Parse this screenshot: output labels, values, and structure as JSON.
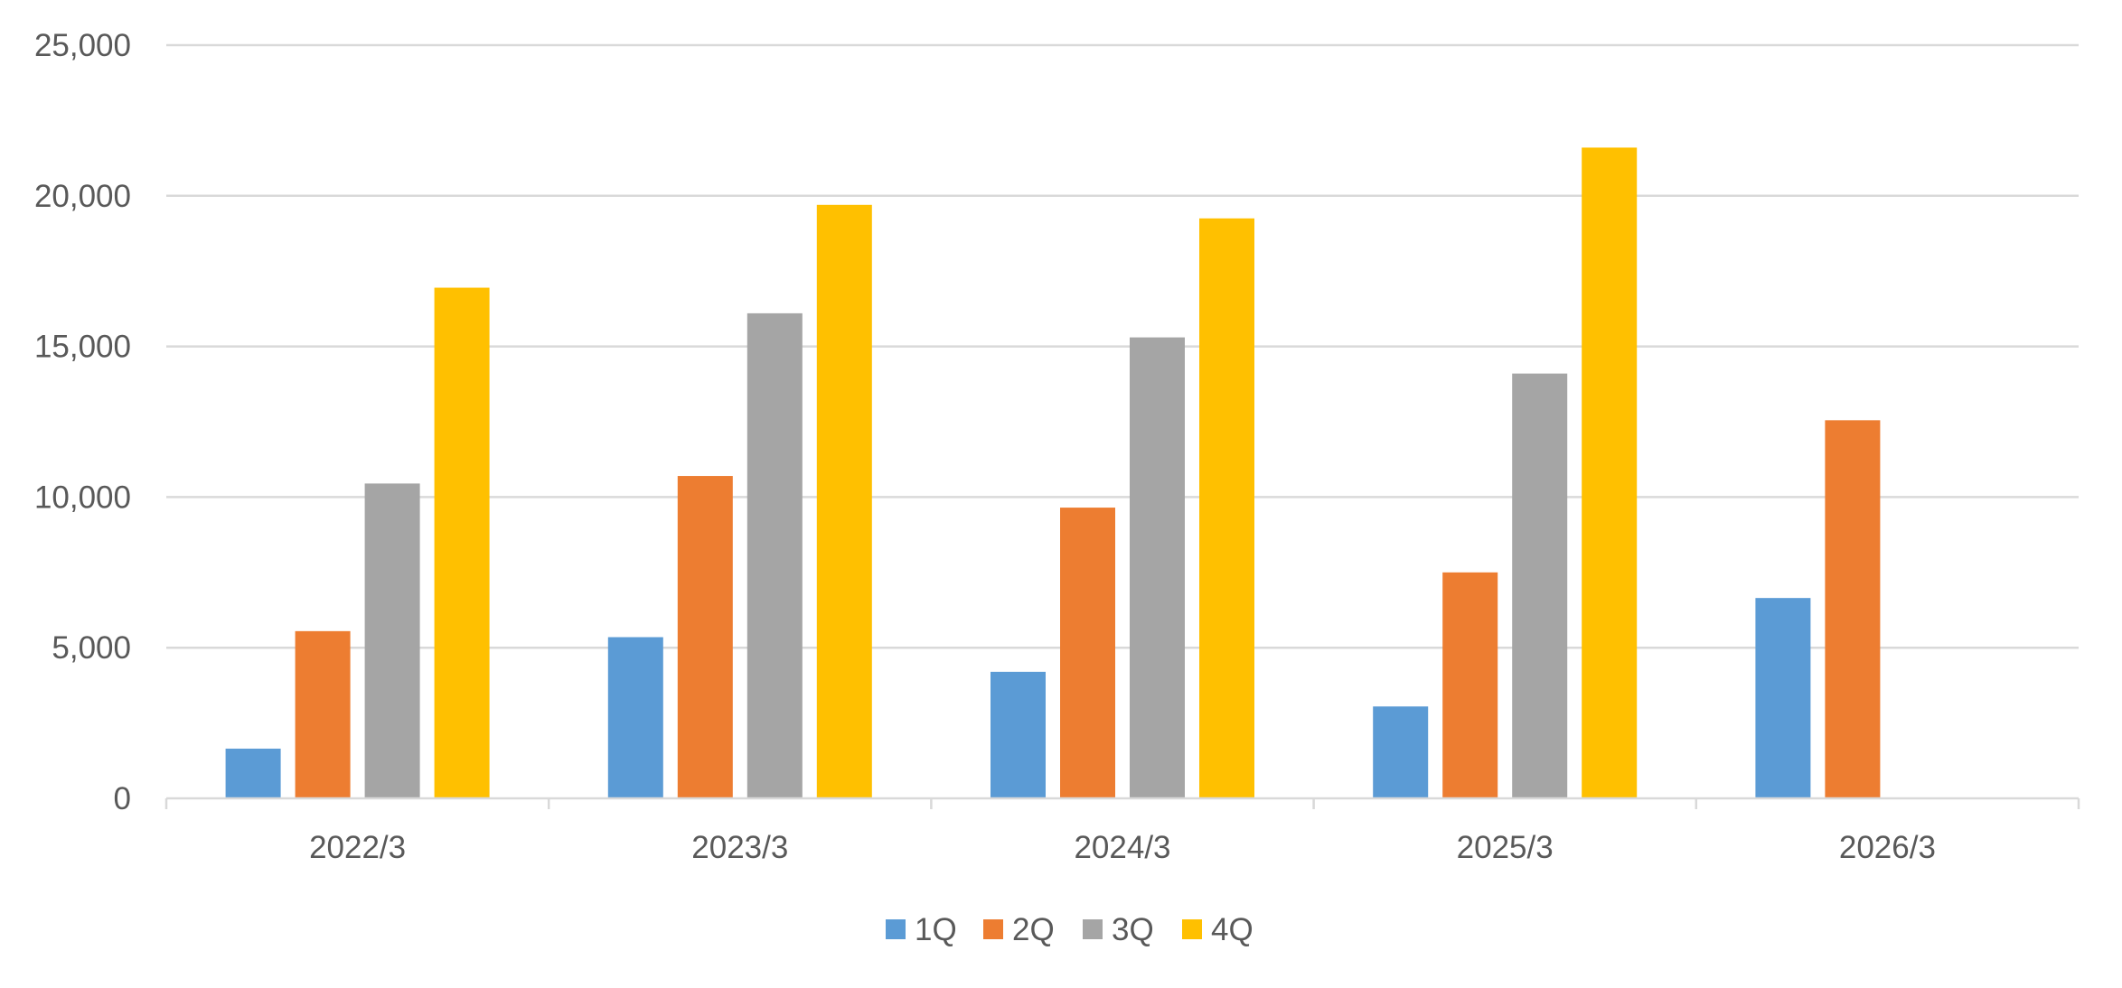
{
  "chart_data": {
    "type": "bar",
    "title": "",
    "xlabel": "",
    "ylabel": "",
    "categories": [
      "2022/3",
      "2023/3",
      "2024/3",
      "2025/3",
      "2026/3"
    ],
    "series": [
      {
        "name": "1Q",
        "color": "#5B9BD5",
        "values": [
          1650,
          5350,
          4200,
          3050,
          6650
        ]
      },
      {
        "name": "2Q",
        "color": "#ED7D31",
        "values": [
          5550,
          10700,
          9650,
          7500,
          12550
        ]
      },
      {
        "name": "3Q",
        "color": "#A5A5A5",
        "values": [
          10450,
          16100,
          15300,
          14100,
          null
        ]
      },
      {
        "name": "4Q",
        "color": "#FFC000",
        "values": [
          16950,
          19700,
          19250,
          21600,
          null
        ]
      }
    ],
    "ylim": [
      0,
      25000
    ],
    "yticks": [
      0,
      5000,
      10000,
      15000,
      20000,
      25000
    ],
    "ytick_labels": [
      "0",
      "5,000",
      "10,000",
      "15,000",
      "20,000",
      "25,000"
    ],
    "grid": true,
    "legend_position": "bottom",
    "colors": {
      "gridline": "#D9D9D9",
      "axis": "#D9D9D9",
      "text": "#595959"
    }
  }
}
